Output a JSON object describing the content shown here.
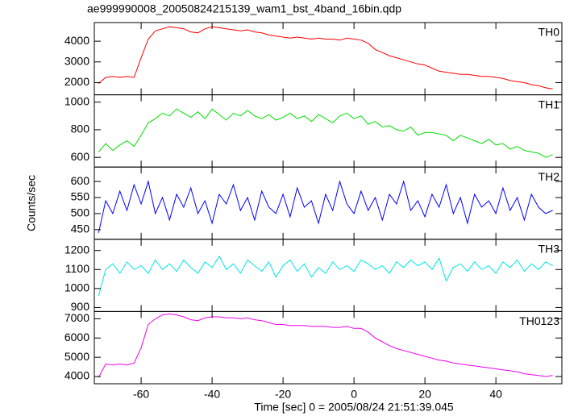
{
  "chart_data": {
    "type": "line",
    "title": "ae999990008_20050824215139_wam1_bst_4band_16bin.qdp",
    "x_label": "Time [sec] 0 = 2005/08/24 21:51:39.045",
    "y_label": "Counts/sec",
    "xlim": [
      -73.2,
      58.6
    ],
    "xticks": [
      -60,
      -40,
      -20,
      0,
      20,
      40
    ],
    "x": [
      -72,
      -70,
      -68,
      -66,
      -64,
      -62,
      -60,
      -58,
      -56,
      -54,
      -52,
      -50,
      -48,
      -46,
      -44,
      -42,
      -40,
      -38,
      -36,
      -34,
      -32,
      -30,
      -28,
      -26,
      -24,
      -22,
      -20,
      -18,
      -16,
      -14,
      -12,
      -10,
      -8,
      -6,
      -4,
      -2,
      0,
      2,
      4,
      6,
      8,
      10,
      12,
      14,
      16,
      18,
      20,
      22,
      24,
      26,
      28,
      30,
      32,
      34,
      36,
      38,
      40,
      42,
      44,
      46,
      48,
      50,
      52,
      54,
      56
    ],
    "series": [
      {
        "name": "TH0",
        "color": "#ff0000",
        "ylim": [
          1410,
          4900
        ],
        "yticks": [
          2000,
          3000,
          4000
        ],
        "values": [
          1950,
          2250,
          2300,
          2250,
          2300,
          2250,
          3200,
          4100,
          4500,
          4600,
          4700,
          4650,
          4600,
          4450,
          4400,
          4600,
          4700,
          4650,
          4600,
          4550,
          4500,
          4550,
          4450,
          4400,
          4300,
          4250,
          4200,
          4150,
          4200,
          4150,
          4100,
          4150,
          4100,
          4100,
          4050,
          4150,
          4100,
          4050,
          3900,
          3600,
          3450,
          3300,
          3200,
          3100,
          3000,
          2900,
          2850,
          2700,
          2550,
          2500,
          2450,
          2400,
          2400,
          2350,
          2300,
          2300,
          2250,
          2200,
          2100,
          2050,
          2000,
          1900,
          1850,
          1750,
          1700
        ]
      },
      {
        "name": "TH1",
        "color": "#00dd00",
        "ylim": [
          530,
          1053
        ],
        "yticks": [
          600,
          800,
          1000
        ],
        "values": [
          640,
          700,
          650,
          690,
          720,
          680,
          760,
          850,
          880,
          920,
          900,
          950,
          920,
          890,
          930,
          880,
          950,
          910,
          870,
          920,
          900,
          940,
          900,
          880,
          910,
          870,
          890,
          920,
          880,
          900,
          860,
          910,
          880,
          850,
          900,
          920,
          880,
          900,
          840,
          860,
          820,
          830,
          800,
          790,
          820,
          760,
          780,
          780,
          770,
          760,
          720,
          760,
          740,
          720,
          700,
          730,
          690,
          700,
          660,
          680,
          650,
          640,
          630,
          600,
          620
        ]
      },
      {
        "name": "TH2",
        "color": "#0000ff",
        "ylim": [
          420,
          645
        ],
        "yticks": [
          450,
          500,
          550,
          600
        ],
        "values": [
          440,
          540,
          500,
          570,
          510,
          590,
          530,
          600,
          500,
          550,
          480,
          560,
          520,
          580,
          500,
          540,
          470,
          560,
          530,
          590,
          510,
          550,
          480,
          570,
          520,
          500,
          560,
          490,
          580,
          520,
          540,
          470,
          560,
          510,
          600,
          530,
          500,
          570,
          510,
          550,
          480,
          560,
          530,
          600,
          510,
          540,
          490,
          560,
          520,
          590,
          500,
          550,
          470,
          560,
          520,
          540,
          500,
          580,
          510,
          550,
          480,
          560,
          520,
          500,
          510
        ]
      },
      {
        "name": "TH3",
        "color": "#00e5e5",
        "ylim": [
          879,
          1259
        ],
        "yticks": [
          900,
          1000,
          1100,
          1200
        ],
        "values": [
          960,
          1100,
          1130,
          1080,
          1140,
          1100,
          1120,
          1080,
          1150,
          1100,
          1130,
          1090,
          1150,
          1110,
          1080,
          1140,
          1110,
          1170,
          1100,
          1130,
          1080,
          1150,
          1120,
          1090,
          1140,
          1060,
          1120,
          1150,
          1090,
          1130,
          1060,
          1110,
          1080,
          1140,
          1100,
          1120,
          1090,
          1150,
          1130,
          1100,
          1120,
          1080,
          1140,
          1110,
          1150,
          1120,
          1140,
          1100,
          1160,
          1040,
          1110,
          1130,
          1090,
          1140,
          1100,
          1120,
          1080,
          1140,
          1110,
          1150,
          1090,
          1130,
          1100,
          1140,
          1120
        ]
      },
      {
        "name": "TH0123",
        "color": "#ee00ee",
        "ylim": [
          3625,
          7375
        ],
        "yticks": [
          4000,
          5000,
          6000,
          7000
        ],
        "values": [
          3950,
          4650,
          4600,
          4650,
          4600,
          4700,
          5500,
          6700,
          7000,
          7200,
          7250,
          7200,
          7100,
          6950,
          6900,
          7050,
          7100,
          7100,
          7050,
          7050,
          7000,
          7050,
          6950,
          6900,
          6800,
          6700,
          6700,
          6650,
          6650,
          6650,
          6600,
          6600,
          6600,
          6550,
          6550,
          6600,
          6500,
          6500,
          6300,
          6000,
          5800,
          5600,
          5450,
          5350,
          5250,
          5150,
          5050,
          4950,
          4850,
          4800,
          4700,
          4650,
          4600,
          4550,
          4500,
          4450,
          4400,
          4350,
          4300,
          4250,
          4150,
          4100,
          4050,
          4000,
          4050
        ]
      }
    ]
  }
}
